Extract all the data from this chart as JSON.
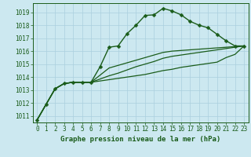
{
  "title": "Graphe pression niveau de la mer (hPa)",
  "background_color": "#cce8f0",
  "grid_color": "#aacfde",
  "line_color": "#1a5c1a",
  "xlim": [
    -0.5,
    23.5
  ],
  "ylim": [
    1010.5,
    1019.7
  ],
  "xticks": [
    0,
    1,
    2,
    3,
    4,
    5,
    6,
    7,
    8,
    9,
    10,
    11,
    12,
    13,
    14,
    15,
    16,
    17,
    18,
    19,
    20,
    21,
    22,
    23
  ],
  "yticks": [
    1011,
    1012,
    1013,
    1014,
    1015,
    1016,
    1017,
    1018,
    1019
  ],
  "series": [
    {
      "x": [
        0,
        1,
        2,
        3,
        4,
        5,
        6,
        7,
        8,
        9,
        10,
        11,
        12,
        13,
        14,
        15,
        16,
        17,
        18,
        19,
        20,
        21,
        22,
        23
      ],
      "y": [
        1010.7,
        1011.9,
        1013.1,
        1013.5,
        1013.6,
        1013.6,
        1013.6,
        1014.8,
        1016.3,
        1016.4,
        1017.35,
        1018.0,
        1018.75,
        1018.8,
        1019.3,
        1019.1,
        1018.8,
        1018.3,
        1018.0,
        1017.8,
        1017.3,
        1016.8,
        1016.4,
        1016.4
      ],
      "marker": "D",
      "markersize": 2.5,
      "linewidth": 1.0,
      "with_marker": true
    },
    {
      "x": [
        0,
        1,
        2,
        3,
        4,
        5,
        6,
        7,
        8,
        9,
        10,
        11,
        12,
        13,
        14,
        15,
        16,
        17,
        18,
        19,
        20,
        21,
        22,
        23
      ],
      "y": [
        1010.7,
        1011.9,
        1013.1,
        1013.5,
        1013.6,
        1013.6,
        1013.6,
        1014.15,
        1014.7,
        1014.9,
        1015.1,
        1015.3,
        1015.5,
        1015.7,
        1015.9,
        1016.0,
        1016.05,
        1016.1,
        1016.15,
        1016.2,
        1016.25,
        1016.3,
        1016.35,
        1016.4
      ],
      "marker": null,
      "markersize": 0,
      "linewidth": 0.9,
      "with_marker": false
    },
    {
      "x": [
        0,
        1,
        2,
        3,
        4,
        5,
        6,
        7,
        8,
        9,
        10,
        11,
        12,
        13,
        14,
        15,
        16,
        17,
        18,
        19,
        20,
        21,
        22,
        23
      ],
      "y": [
        1010.7,
        1011.9,
        1013.1,
        1013.5,
        1013.6,
        1013.6,
        1013.6,
        1013.85,
        1014.1,
        1014.3,
        1014.55,
        1014.8,
        1015.0,
        1015.2,
        1015.45,
        1015.6,
        1015.7,
        1015.8,
        1015.9,
        1016.0,
        1016.1,
        1016.2,
        1016.3,
        1016.4
      ],
      "marker": null,
      "markersize": 0,
      "linewidth": 0.9,
      "with_marker": false
    },
    {
      "x": [
        0,
        1,
        2,
        3,
        4,
        5,
        6,
        7,
        8,
        9,
        10,
        11,
        12,
        13,
        14,
        15,
        16,
        17,
        18,
        19,
        20,
        21,
        22,
        23
      ],
      "y": [
        1010.7,
        1011.9,
        1013.1,
        1013.5,
        1013.6,
        1013.6,
        1013.6,
        1013.7,
        1013.8,
        1013.9,
        1014.0,
        1014.1,
        1014.2,
        1014.35,
        1014.5,
        1014.6,
        1014.75,
        1014.85,
        1014.95,
        1015.05,
        1015.15,
        1015.5,
        1015.75,
        1016.4
      ],
      "marker": null,
      "markersize": 0,
      "linewidth": 0.9,
      "with_marker": false
    }
  ],
  "tick_fontsize": 5.5,
  "title_fontsize": 6.5,
  "tick_color": "#1a5c1a"
}
